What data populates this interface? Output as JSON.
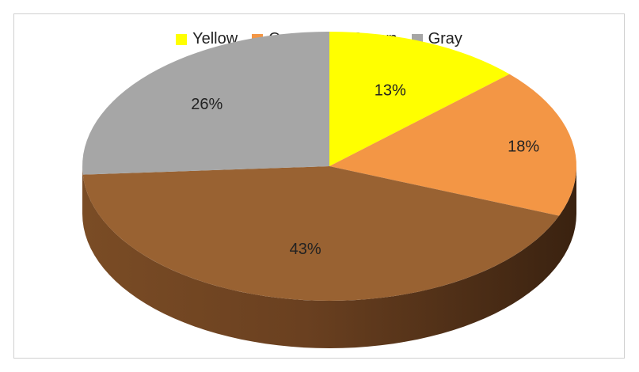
{
  "chart_data": {
    "type": "pie",
    "style": "3d",
    "legend_position": "top",
    "categories": [
      "Yellow",
      "Orange",
      "Brown",
      "Gray"
    ],
    "values": [
      13,
      18,
      43,
      26
    ],
    "labels": [
      "13%",
      "18%",
      "43%",
      "26%"
    ],
    "colors": [
      "#ffff00",
      "#f39645",
      "#996232",
      "#a6a6a6"
    ]
  }
}
